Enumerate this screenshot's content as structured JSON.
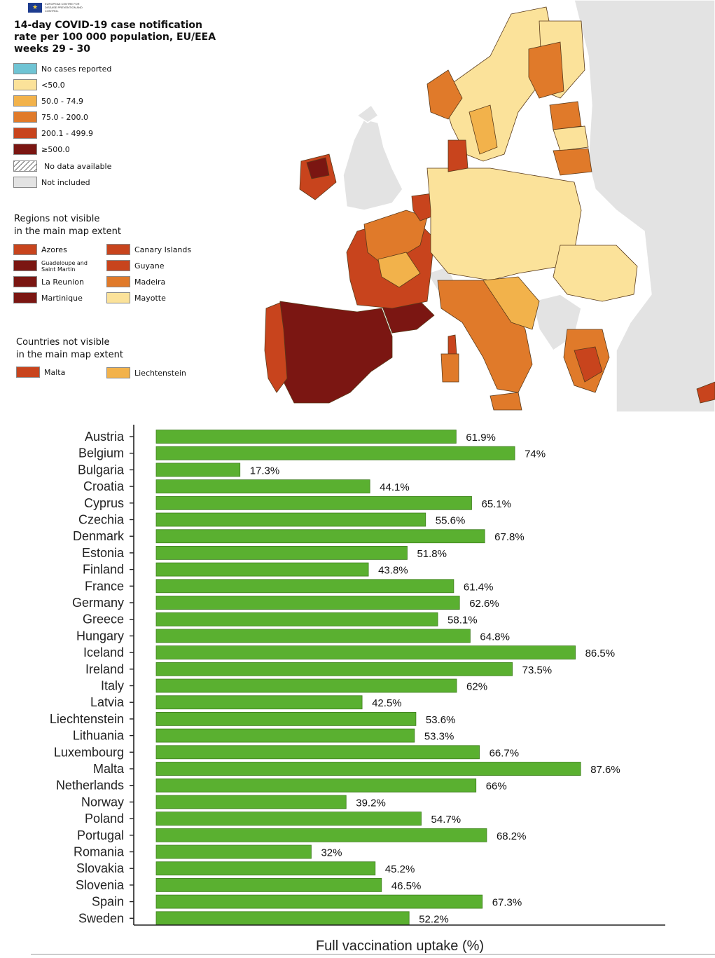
{
  "map": {
    "title_lines": [
      "14-day COVID-19 case notification",
      "rate per 100 000 population, EU/EEA",
      "weeks 29 - 30"
    ],
    "legend": [
      {
        "label": "No cases reported",
        "color": "#6fc4d4"
      },
      {
        "label": "<50.0",
        "color": "#fbe29a"
      },
      {
        "label": "50.0 - 74.9",
        "color": "#f2b24b"
      },
      {
        "label": "75.0 - 200.0",
        "color": "#e07a2a"
      },
      {
        "label": "200.1 - 499.9",
        "color": "#c8441d"
      },
      {
        "label": "≥500.0",
        "color": "#7b1612"
      },
      {
        "label": "No data available",
        "color": "hatched"
      },
      {
        "label": "Not included",
        "color": "#e3e3e3"
      }
    ],
    "regions_title_lines": [
      "Regions not visible",
      "in the main map extent"
    ],
    "regions": [
      {
        "label": "Azores",
        "color": "#c8441d"
      },
      {
        "label": "Canary Islands",
        "color": "#c8441d"
      },
      {
        "label": "Guadeloupe and Saint Martin",
        "color": "#7b1612"
      },
      {
        "label": "Guyane",
        "color": "#c8441d"
      },
      {
        "label": "La Reunion",
        "color": "#7b1612"
      },
      {
        "label": "Madeira",
        "color": "#e07a2a"
      },
      {
        "label": "Martinique",
        "color": "#7b1612"
      },
      {
        "label": "Mayotte",
        "color": "#fbe29a"
      }
    ],
    "countries_title_lines": [
      "Countries not visible",
      "in the main map extent"
    ],
    "countries": [
      {
        "label": "Malta",
        "color": "#c8441d"
      },
      {
        "label": "Liechtenstein",
        "color": "#f2b24b"
      }
    ]
  },
  "chart_data": {
    "type": "bar",
    "orientation": "horizontal",
    "xlabel": "Full vaccination uptake (%)",
    "ylabel": "",
    "xlim": [
      0,
      100
    ],
    "bar_color": "#5ab030",
    "categories": [
      "Austria",
      "Belgium",
      "Bulgaria",
      "Croatia",
      "Cyprus",
      "Czechia",
      "Denmark",
      "Estonia",
      "Finland",
      "France",
      "Germany",
      "Greece",
      "Hungary",
      "Iceland",
      "Ireland",
      "Italy",
      "Latvia",
      "Liechtenstein",
      "Lithuania",
      "Luxembourg",
      "Malta",
      "Netherlands",
      "Norway",
      "Poland",
      "Portugal",
      "Romania",
      "Slovakia",
      "Slovenia",
      "Spain",
      "Sweden"
    ],
    "values": [
      61.9,
      74,
      17.3,
      44.1,
      65.1,
      55.6,
      67.8,
      51.8,
      43.8,
      61.4,
      62.6,
      58.1,
      64.8,
      86.5,
      73.5,
      62,
      42.5,
      53.6,
      53.3,
      66.7,
      87.6,
      66,
      39.2,
      54.7,
      68.2,
      32,
      45.2,
      46.5,
      67.3,
      52.2
    ],
    "labels": [
      "61.9%",
      "74%",
      "17.3%",
      "44.1%",
      "65.1%",
      "55.6%",
      "67.8%",
      "51.8%",
      "43.8%",
      "61.4%",
      "62.6%",
      "58.1%",
      "64.8%",
      "86.5%",
      "73.5%",
      "62%",
      "42.5%",
      "53.6%",
      "53.3%",
      "66.7%",
      "87.6%",
      "66%",
      "39.2%",
      "54.7%",
      "68.2%",
      "32%",
      "45.2%",
      "46.5%",
      "67.3%",
      "52.2%"
    ]
  }
}
